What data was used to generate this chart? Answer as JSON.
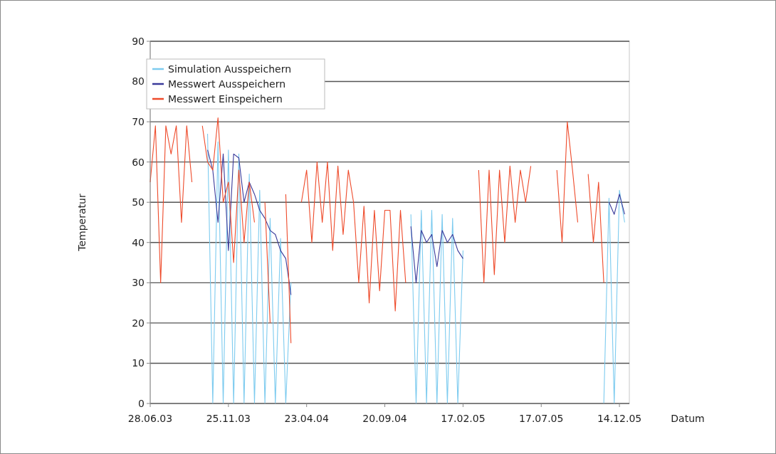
{
  "chart_data": {
    "type": "line",
    "xlabel": "Datum",
    "ylabel": "Temperatur",
    "xlim": [
      "2003-06-28",
      "2006-01-02"
    ],
    "ylim": [
      0,
      90
    ],
    "yticks": [
      0,
      10,
      20,
      30,
      40,
      50,
      60,
      70,
      80,
      90
    ],
    "xticks": [
      {
        "value": "2003-06-28",
        "label": "28.06.03"
      },
      {
        "value": "2003-11-25",
        "label": "25.11.03"
      },
      {
        "value": "2004-04-23",
        "label": "23.04.04"
      },
      {
        "value": "2004-09-20",
        "label": "20.09.04"
      },
      {
        "value": "2005-02-17",
        "label": "17.02.05"
      },
      {
        "value": "2005-07-17",
        "label": "17.07.05"
      },
      {
        "value": "2005-12-14",
        "label": "14.12.05"
      }
    ],
    "grid": "y",
    "legend": "top left",
    "marker": "none",
    "line_style": "solid",
    "x": [
      "2003-06-28",
      "2003-07-08",
      "2003-07-18",
      "2003-07-28",
      "2003-08-07",
      "2003-08-17",
      "2003-08-27",
      "2003-09-06",
      "2003-09-16",
      "2003-09-26",
      "2003-10-06",
      "2003-10-16",
      "2003-10-26",
      "2003-11-05",
      "2003-11-15",
      "2003-11-25",
      "2003-12-05",
      "2003-12-15",
      "2003-12-25",
      "2004-01-04",
      "2004-01-14",
      "2004-01-24",
      "2004-02-03",
      "2004-02-13",
      "2004-02-23",
      "2004-03-04",
      "2004-03-14",
      "2004-03-24",
      "2004-04-03",
      "2004-04-13",
      "2004-04-23",
      "2004-05-03",
      "2004-05-13",
      "2004-05-23",
      "2004-06-02",
      "2004-06-12",
      "2004-06-22",
      "2004-07-02",
      "2004-07-12",
      "2004-07-22",
      "2004-08-01",
      "2004-08-11",
      "2004-08-21",
      "2004-08-31",
      "2004-09-10",
      "2004-09-20",
      "2004-09-30",
      "2004-10-10",
      "2004-10-20",
      "2004-10-30",
      "2004-11-09",
      "2004-11-19",
      "2004-11-29",
      "2004-12-09",
      "2004-12-19",
      "2004-12-29",
      "2005-01-08",
      "2005-01-18",
      "2005-01-28",
      "2005-02-07",
      "2005-02-17",
      "2005-02-27",
      "2005-03-09",
      "2005-03-19",
      "2005-03-29",
      "2005-04-08",
      "2005-04-18",
      "2005-04-28",
      "2005-05-08",
      "2005-05-18",
      "2005-05-28",
      "2005-06-07",
      "2005-06-17",
      "2005-06-27",
      "2005-07-07",
      "2005-07-17",
      "2005-07-27",
      "2005-08-06",
      "2005-08-16",
      "2005-08-26",
      "2005-09-05",
      "2005-09-15",
      "2005-09-25",
      "2005-10-05",
      "2005-10-15",
      "2005-10-25",
      "2005-11-04",
      "2005-11-14",
      "2005-11-24",
      "2005-12-04",
      "2005-12-14",
      "2005-12-24"
    ],
    "series": [
      {
        "name": "Simulation Ausspeichern",
        "color": "#7dcbef",
        "values": [
          null,
          null,
          null,
          null,
          null,
          null,
          null,
          null,
          null,
          null,
          null,
          67,
          0,
          65,
          0,
          63,
          0,
          62,
          0,
          57,
          0,
          53,
          0,
          46,
          0,
          41,
          0,
          30,
          null,
          null,
          null,
          null,
          null,
          null,
          null,
          null,
          null,
          null,
          null,
          null,
          null,
          null,
          null,
          null,
          null,
          null,
          null,
          null,
          null,
          null,
          47,
          0,
          48,
          0,
          48,
          0,
          47,
          0,
          46,
          0,
          38,
          null,
          null,
          null,
          null,
          null,
          null,
          null,
          null,
          null,
          null,
          null,
          null,
          null,
          null,
          null,
          null,
          null,
          null,
          null,
          null,
          null,
          null,
          null,
          null,
          null,
          null,
          0,
          51,
          0,
          53,
          45
        ]
      },
      {
        "name": "Messwert Ausspeichern",
        "color": "#3a3a9a",
        "values": [
          null,
          null,
          null,
          null,
          null,
          null,
          null,
          null,
          null,
          null,
          null,
          63,
          58,
          45,
          62,
          38,
          62,
          61,
          50,
          55,
          52,
          48,
          46,
          43,
          42,
          38,
          36,
          27,
          null,
          null,
          null,
          null,
          null,
          null,
          null,
          null,
          null,
          null,
          null,
          null,
          null,
          null,
          null,
          null,
          null,
          null,
          null,
          null,
          null,
          null,
          44,
          30,
          43,
          40,
          42,
          34,
          43,
          40,
          42,
          38,
          36,
          null,
          null,
          null,
          null,
          null,
          null,
          null,
          null,
          null,
          null,
          null,
          null,
          null,
          null,
          null,
          null,
          null,
          null,
          null,
          null,
          null,
          null,
          null,
          null,
          null,
          null,
          null,
          50,
          47,
          52,
          47
        ]
      },
      {
        "name": "Messwert Einspeichern",
        "color": "#ee4a2a",
        "values": [
          55,
          69,
          30,
          69,
          62,
          69,
          45,
          69,
          55,
          null,
          69,
          60,
          58,
          71,
          50,
          55,
          35,
          58,
          40,
          55,
          45,
          null,
          50,
          20,
          null,
          null,
          52,
          15,
          null,
          50,
          58,
          40,
          60,
          45,
          60,
          38,
          59,
          42,
          58,
          50,
          30,
          49,
          25,
          48,
          28,
          48,
          48,
          23,
          48,
          30,
          null,
          null,
          null,
          null,
          null,
          null,
          null,
          null,
          null,
          null,
          null,
          null,
          null,
          58,
          30,
          58,
          32,
          58,
          40,
          59,
          45,
          58,
          50,
          59,
          null,
          null,
          null,
          null,
          58,
          40,
          70,
          58,
          45,
          null,
          57,
          40,
          55,
          30,
          null,
          null,
          null,
          null
        ]
      }
    ]
  }
}
